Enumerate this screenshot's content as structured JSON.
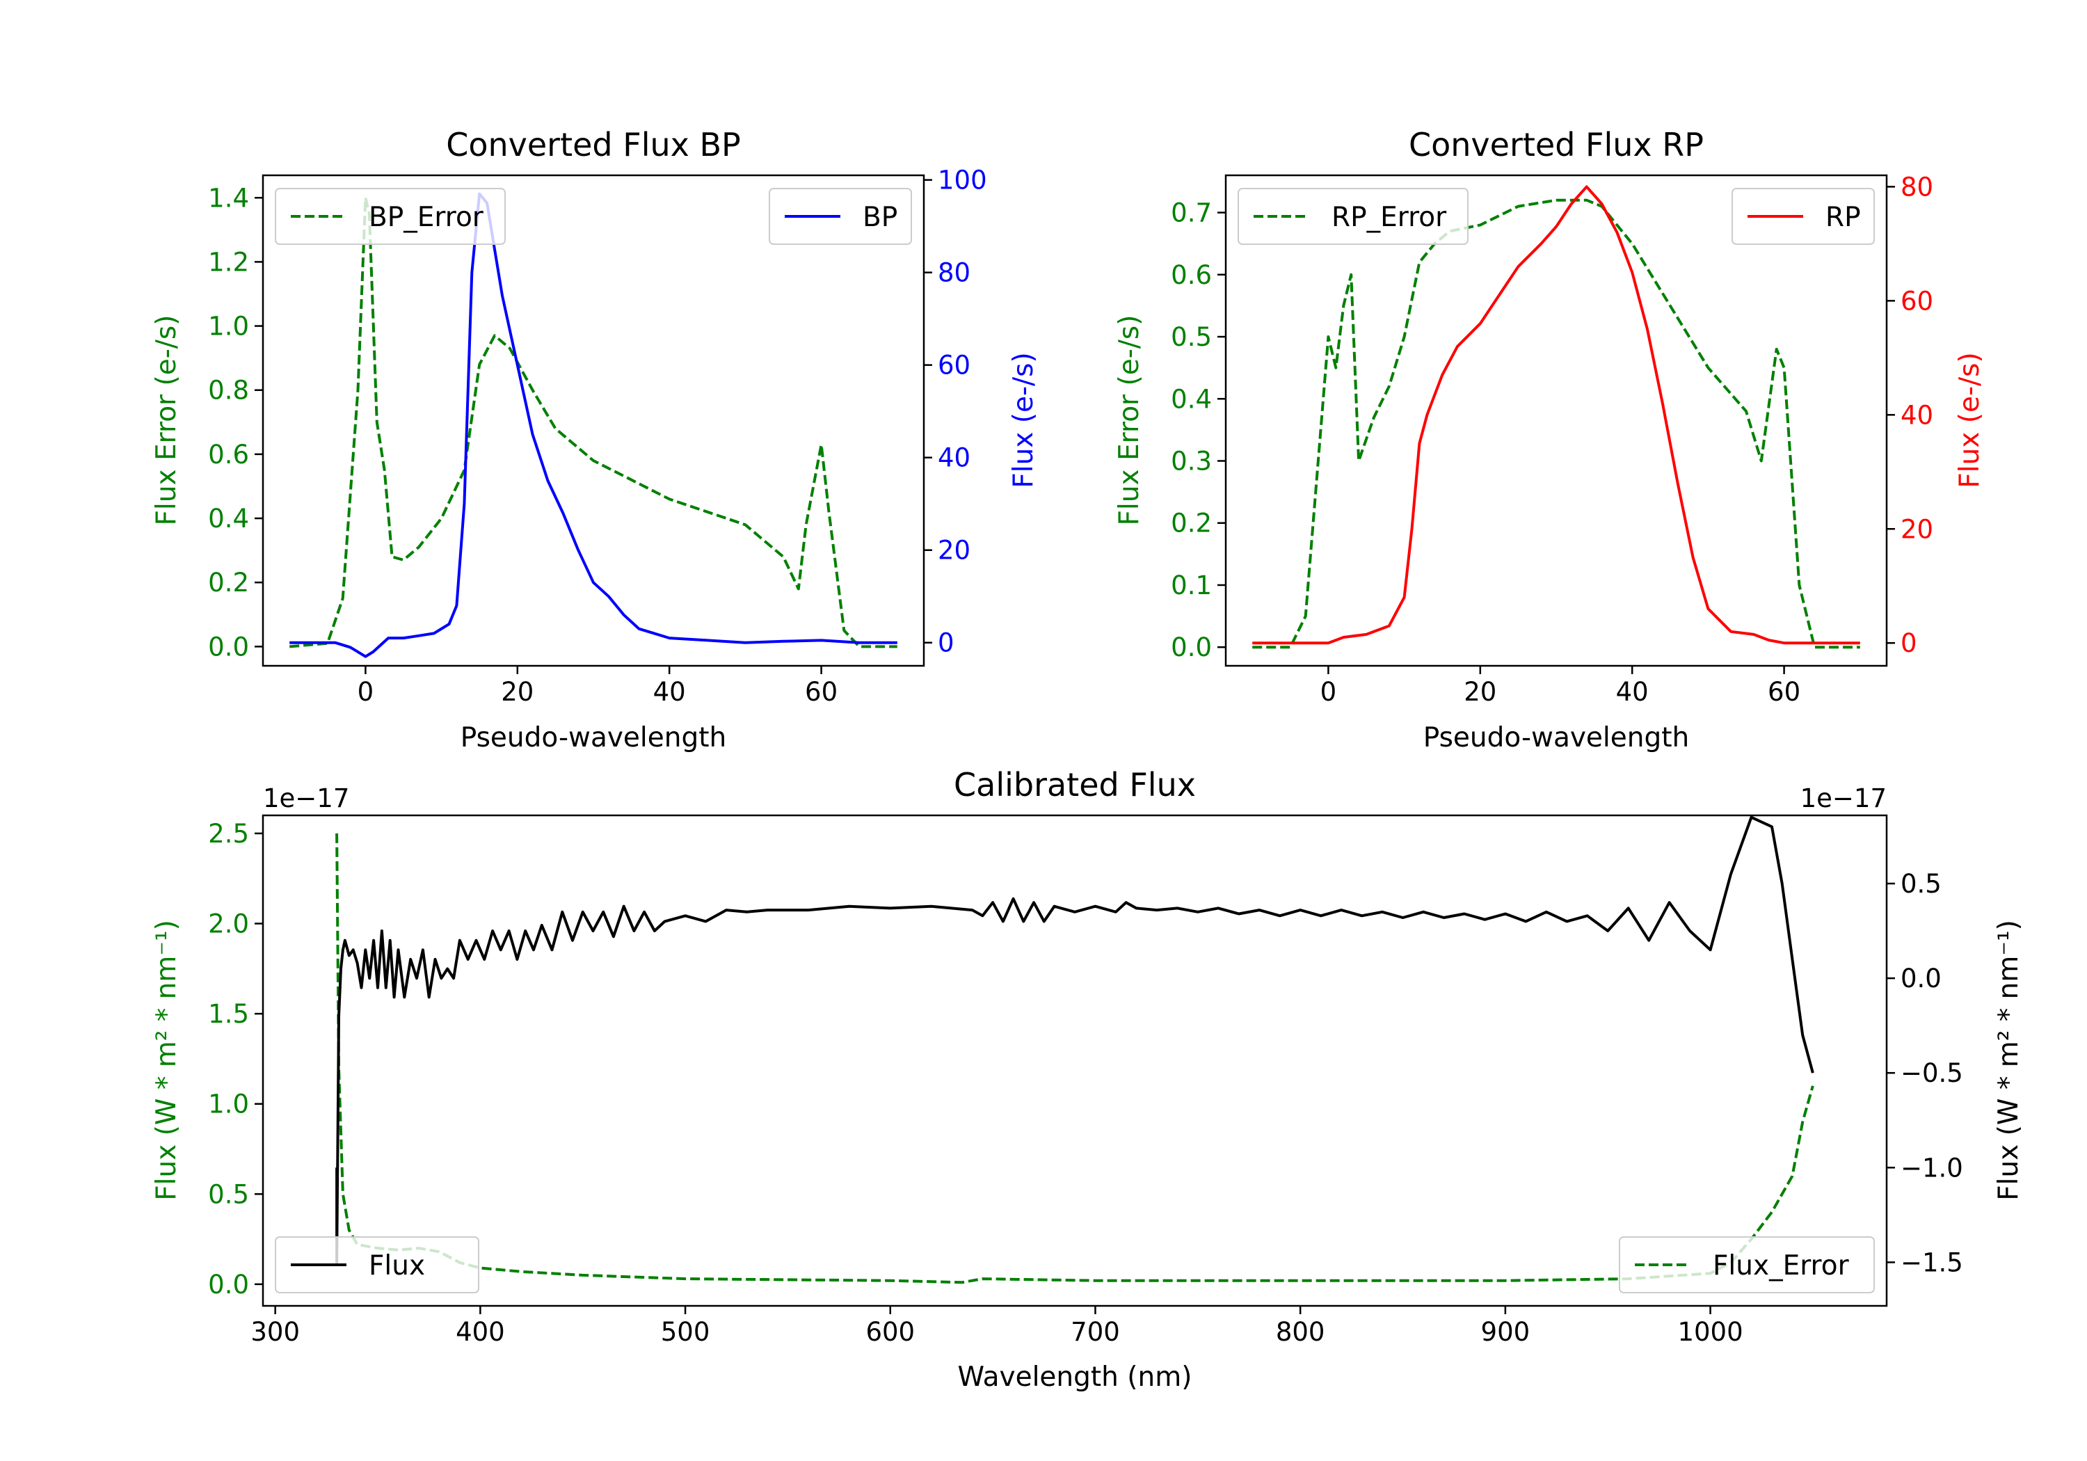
{
  "chart_data": [
    {
      "id": "bp",
      "type": "line",
      "title": "Converted Flux BP",
      "xlabel": "Pseudo-wavelength",
      "xlim": [
        -13.5,
        73.5
      ],
      "xticks": [
        0,
        20,
        40,
        60
      ],
      "left_axis": {
        "label": "Flux Error (e-/s)",
        "color": "#008000",
        "lim": [
          -0.06,
          1.47
        ],
        "ticks": [
          "0.0",
          "0.2",
          "0.4",
          "0.6",
          "0.8",
          "1.0",
          "1.2",
          "1.4"
        ],
        "tick_values": [
          0,
          0.2,
          0.4,
          0.6,
          0.8,
          1.0,
          1.2,
          1.4
        ]
      },
      "right_axis": {
        "label": "Flux (e-/s)",
        "color": "#0000ff",
        "lim": [
          -5,
          101
        ],
        "ticks": [
          "0",
          "20",
          "40",
          "60",
          "80",
          "100"
        ],
        "tick_values": [
          0,
          20,
          40,
          60,
          80,
          100
        ]
      },
      "series": [
        {
          "name": "BP_Error",
          "axis": "left",
          "style": "dashed",
          "color": "#008000",
          "x": [
            -10,
            -5,
            -3,
            -1,
            0,
            0.5,
            1.5,
            2.5,
            3.5,
            5,
            7,
            10,
            13,
            15,
            17,
            19,
            22,
            25,
            30,
            35,
            40,
            45,
            50,
            53,
            55,
            57,
            58,
            60,
            61,
            63,
            65,
            70
          ],
          "y": [
            0,
            0.01,
            0.15,
            0.8,
            1.4,
            1.35,
            0.7,
            0.55,
            0.28,
            0.27,
            0.31,
            0.4,
            0.55,
            0.88,
            0.97,
            0.93,
            0.8,
            0.68,
            0.58,
            0.52,
            0.46,
            0.42,
            0.38,
            0.32,
            0.28,
            0.18,
            0.38,
            0.63,
            0.42,
            0.05,
            0,
            0
          ]
        },
        {
          "name": "BP",
          "axis": "right",
          "style": "solid",
          "color": "#0000ff",
          "x": [
            -10,
            -4,
            -2,
            0,
            1,
            3,
            5,
            7,
            9,
            11,
            12,
            13,
            14,
            15,
            16,
            17,
            18,
            20,
            22,
            24,
            26,
            28,
            30,
            32,
            34,
            36,
            38,
            40,
            45,
            50,
            55,
            60,
            65,
            70
          ],
          "y": [
            0,
            0,
            -1,
            -3,
            -2,
            1,
            1,
            1.5,
            2,
            4,
            8,
            30,
            80,
            97,
            95,
            85,
            75,
            60,
            45,
            35,
            28,
            20,
            13,
            10,
            6,
            3,
            2,
            1,
            0.5,
            0,
            0.3,
            0.5,
            0,
            0
          ]
        }
      ],
      "legend": [
        {
          "label": "BP_Error",
          "position": "upper-left"
        },
        {
          "label": "BP",
          "position": "upper-right"
        }
      ]
    },
    {
      "id": "rp",
      "type": "line",
      "title": "Converted Flux RP",
      "xlabel": "Pseudo-wavelength",
      "xlim": [
        -13.5,
        73.5
      ],
      "xticks": [
        0,
        20,
        40,
        60
      ],
      "left_axis": {
        "label": "Flux Error (e-/s)",
        "color": "#008000",
        "lim": [
          -0.03,
          0.76
        ],
        "ticks": [
          "0.0",
          "0.1",
          "0.2",
          "0.3",
          "0.4",
          "0.5",
          "0.6",
          "0.7"
        ],
        "tick_values": [
          0,
          0.1,
          0.2,
          0.3,
          0.4,
          0.5,
          0.6,
          0.7
        ]
      },
      "right_axis": {
        "label": "Flux (e-/s)",
        "color": "#ff0000",
        "lim": [
          -4,
          82
        ],
        "ticks": [
          "0",
          "20",
          "40",
          "60",
          "80"
        ],
        "tick_values": [
          0,
          20,
          40,
          60,
          80
        ]
      },
      "series": [
        {
          "name": "RP_Error",
          "axis": "left",
          "style": "dashed",
          "color": "#008000",
          "x": [
            -10,
            -5,
            -3,
            -1,
            0,
            1,
            2,
            3,
            4,
            6,
            8,
            10,
            12,
            14,
            16,
            20,
            25,
            30,
            34,
            36,
            40,
            45,
            50,
            55,
            57,
            59,
            60,
            62,
            64,
            70
          ],
          "y": [
            0,
            0,
            0.05,
            0.35,
            0.5,
            0.45,
            0.55,
            0.6,
            0.3,
            0.37,
            0.42,
            0.5,
            0.62,
            0.65,
            0.67,
            0.68,
            0.71,
            0.72,
            0.72,
            0.71,
            0.65,
            0.55,
            0.45,
            0.38,
            0.3,
            0.48,
            0.45,
            0.1,
            0,
            0
          ]
        },
        {
          "name": "RP",
          "axis": "right",
          "style": "solid",
          "color": "#ff0000",
          "x": [
            -10,
            -5,
            0,
            2,
            5,
            8,
            10,
            11,
            12,
            13,
            15,
            17,
            20,
            22,
            25,
            28,
            30,
            32,
            34,
            36,
            38,
            40,
            42,
            44,
            46,
            48,
            50,
            53,
            56,
            58,
            60,
            65,
            70
          ],
          "y": [
            0,
            0,
            0,
            1,
            1.5,
            3,
            8,
            20,
            35,
            40,
            47,
            52,
            56,
            60,
            66,
            70,
            73,
            77,
            80,
            77,
            72,
            65,
            55,
            42,
            28,
            15,
            6,
            2,
            1.5,
            0.5,
            0,
            0,
            0
          ]
        }
      ],
      "legend": [
        {
          "label": "RP_Error",
          "position": "upper-left"
        },
        {
          "label": "RP",
          "position": "upper-right"
        }
      ]
    },
    {
      "id": "calibrated",
      "type": "line",
      "title": "Calibrated Flux",
      "xlabel": "Wavelength (nm)",
      "xlim": [
        294,
        1086
      ],
      "xticks": [
        300,
        400,
        500,
        600,
        700,
        800,
        900,
        1000
      ],
      "left_axis": {
        "label": "Flux (W * m$^2$ * nm$^{-1}$)",
        "label_display": "Flux (W * m² * nm⁻¹)",
        "color": "#008000",
        "offset_text": "1e−17",
        "lim": [
          -0.12,
          2.6
        ],
        "ticks": [
          "0.0",
          "0.5",
          "1.0",
          "1.5",
          "2.0",
          "2.5"
        ],
        "tick_values": [
          0,
          0.5,
          1.0,
          1.5,
          2.0,
          2.5
        ]
      },
      "right_axis": {
        "label": "Flux (W * m$^2$ * nm$^{-1}$)",
        "label_display": "Flux (W * m² * nm⁻¹)",
        "color": "#000000",
        "offset_text": "1e−17",
        "lim": [
          -1.73,
          0.86
        ],
        "ticks": [
          "−1.5",
          "−1.0",
          "−0.5",
          "0.0",
          "0.5"
        ],
        "tick_values": [
          -1.5,
          -1.0,
          -0.5,
          0,
          0.5
        ]
      },
      "series": [
        {
          "name": "Flux_Error",
          "axis": "left",
          "style": "dashed",
          "color": "#008000",
          "x": [
            330,
            331,
            333,
            336,
            340,
            350,
            360,
            370,
            380,
            390,
            400,
            420,
            450,
            500,
            600,
            635,
            645,
            700,
            800,
            900,
            960,
            1000,
            1010,
            1020,
            1030,
            1040,
            1045,
            1050
          ],
          "y": [
            2.5,
            1.2,
            0.5,
            0.3,
            0.22,
            0.2,
            0.19,
            0.2,
            0.18,
            0.12,
            0.09,
            0.07,
            0.05,
            0.03,
            0.02,
            0.01,
            0.03,
            0.02,
            0.02,
            0.02,
            0.03,
            0.06,
            0.12,
            0.25,
            0.4,
            0.6,
            0.9,
            1.1
          ]
        },
        {
          "name": "Flux",
          "axis": "right",
          "style": "solid",
          "color": "#000000",
          "x": [
            330,
            330,
            331,
            332,
            333,
            334,
            336,
            338,
            340,
            342,
            344,
            346,
            348,
            350,
            352,
            354,
            356,
            358,
            360,
            363,
            366,
            369,
            372,
            375,
            378,
            381,
            384,
            387,
            390,
            394,
            398,
            402,
            406,
            410,
            414,
            418,
            422,
            426,
            430,
            435,
            440,
            445,
            450,
            455,
            460,
            465,
            470,
            475,
            480,
            485,
            490,
            500,
            510,
            520,
            530,
            540,
            560,
            580,
            600,
            620,
            640,
            645,
            650,
            655,
            660,
            665,
            670,
            675,
            680,
            690,
            700,
            710,
            715,
            720,
            730,
            740,
            750,
            760,
            770,
            780,
            790,
            800,
            810,
            820,
            830,
            840,
            850,
            860,
            870,
            880,
            890,
            900,
            910,
            920,
            930,
            940,
            950,
            960,
            970,
            980,
            990,
            1000,
            1010,
            1020,
            1030,
            1035,
            1040,
            1045,
            1050
          ],
          "y": [
            -1.0,
            -1.5,
            -0.2,
            0.05,
            0.15,
            0.2,
            0.12,
            0.15,
            0.08,
            -0.05,
            0.15,
            0.0,
            0.2,
            -0.05,
            0.25,
            -0.05,
            0.2,
            -0.1,
            0.15,
            -0.1,
            0.1,
            0.0,
            0.15,
            -0.1,
            0.1,
            0.0,
            0.05,
            0.0,
            0.2,
            0.1,
            0.2,
            0.1,
            0.25,
            0.15,
            0.25,
            0.1,
            0.25,
            0.15,
            0.28,
            0.15,
            0.35,
            0.2,
            0.35,
            0.25,
            0.35,
            0.22,
            0.38,
            0.25,
            0.35,
            0.25,
            0.3,
            0.33,
            0.3,
            0.36,
            0.35,
            0.36,
            0.36,
            0.38,
            0.37,
            0.38,
            0.36,
            0.33,
            0.4,
            0.3,
            0.42,
            0.3,
            0.4,
            0.3,
            0.38,
            0.35,
            0.38,
            0.35,
            0.4,
            0.37,
            0.36,
            0.37,
            0.35,
            0.37,
            0.34,
            0.36,
            0.33,
            0.36,
            0.33,
            0.36,
            0.33,
            0.35,
            0.32,
            0.35,
            0.32,
            0.34,
            0.31,
            0.34,
            0.3,
            0.35,
            0.3,
            0.33,
            0.25,
            0.37,
            0.2,
            0.4,
            0.25,
            0.15,
            0.55,
            0.85,
            0.8,
            0.5,
            0.1,
            -0.3,
            -0.5
          ]
        }
      ],
      "legend": [
        {
          "label": "Flux",
          "position": "lower-left"
        },
        {
          "label": "Flux_Error",
          "position": "lower-right"
        }
      ]
    }
  ]
}
